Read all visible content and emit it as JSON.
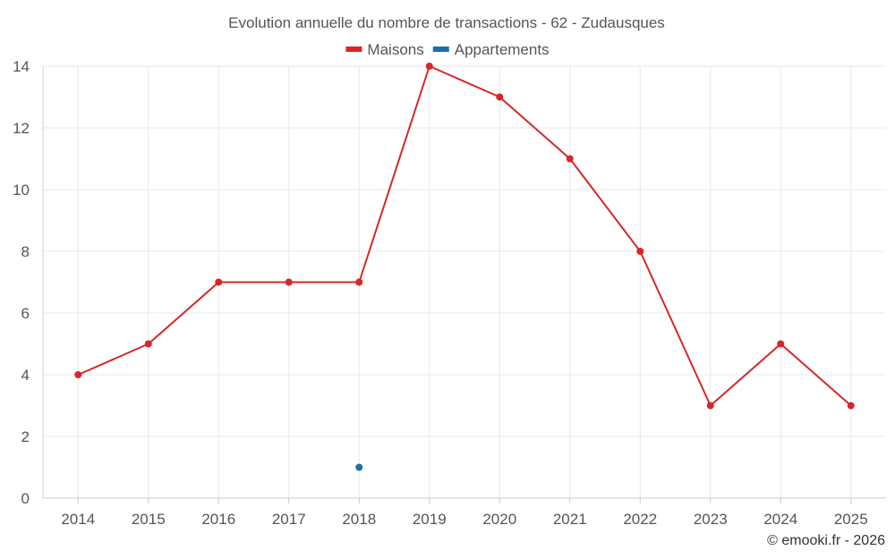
{
  "chart_data": {
    "type": "line",
    "title": "Evolution annuelle du nombre de transactions - 62 - Zudausques",
    "categories": [
      "2014",
      "2015",
      "2016",
      "2017",
      "2018",
      "2019",
      "2020",
      "2021",
      "2022",
      "2023",
      "2024",
      "2025"
    ],
    "ylim": [
      0,
      14
    ],
    "yticks": [
      0,
      2,
      4,
      6,
      8,
      10,
      12,
      14
    ],
    "grid": true,
    "legend_position": "top-center",
    "series": [
      {
        "name": "Maisons",
        "color": "#d62728",
        "values": [
          4,
          5,
          7,
          7,
          7,
          14,
          13,
          11,
          8,
          3,
          5,
          3
        ]
      },
      {
        "name": "Appartements",
        "color": "#1f6fa8",
        "values": [
          null,
          null,
          null,
          null,
          1,
          null,
          null,
          null,
          null,
          null,
          null,
          null
        ]
      }
    ]
  },
  "credit": "© emooki.fr - 2026"
}
